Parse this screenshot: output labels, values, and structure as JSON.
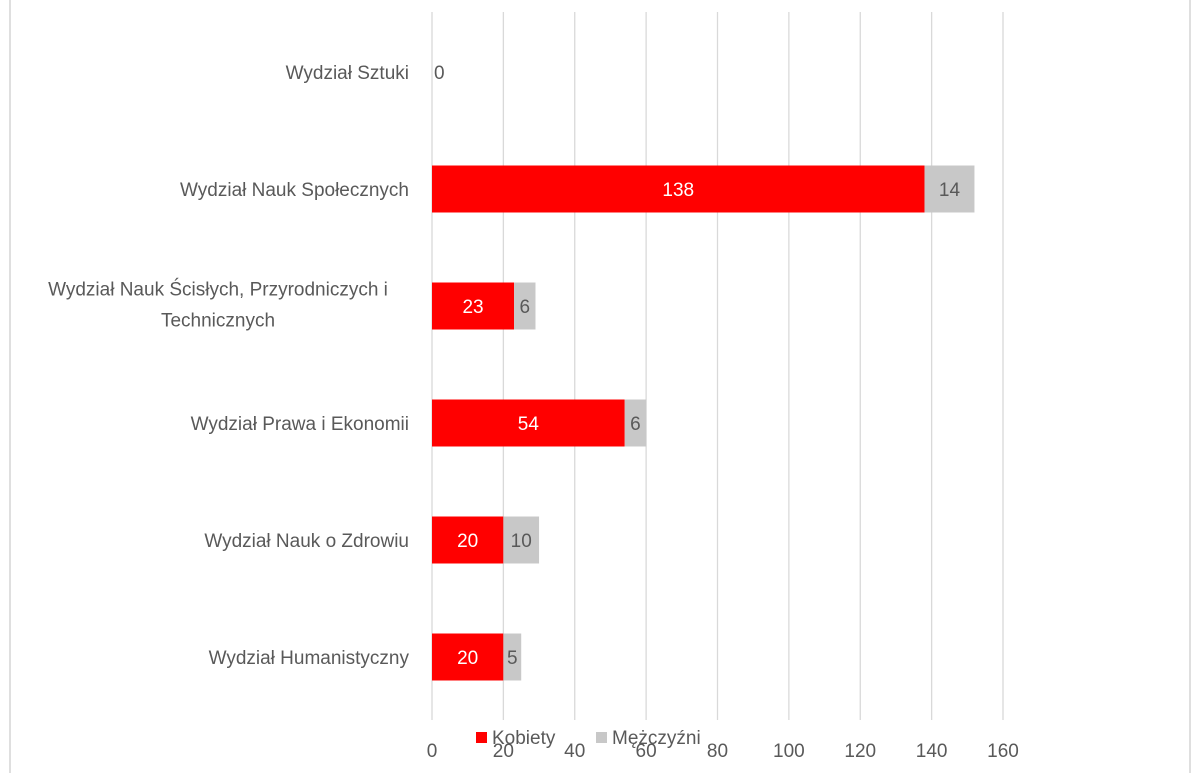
{
  "chart_data": {
    "type": "bar",
    "orientation": "horizontal",
    "stacked": true,
    "title": "",
    "xlabel": "",
    "ylabel": "",
    "xlim": [
      0,
      160
    ],
    "x_ticks": [
      0,
      20,
      40,
      60,
      80,
      100,
      120,
      140,
      160
    ],
    "grid": true,
    "legend_position": "bottom",
    "categories": [
      "Wydział Sztuki",
      "Wydział Nauk Społecznych",
      "Wydział Nauk Ścisłych, Przyrodniczych i Technicznych",
      "Wydział Prawa i Ekonomii",
      "Wydział Nauk o Zdrowiu",
      "Wydział Humanistyczny"
    ],
    "category_label_lines": [
      [
        "Wydział Sztuki"
      ],
      [
        "Wydział Nauk Społecznych"
      ],
      [
        "Wydział Nauk Ścisłych, Przyrodniczych i",
        "Technicznych"
      ],
      [
        "Wydział Prawa i Ekonomii"
      ],
      [
        "Wydział Nauk o Zdrowiu"
      ],
      [
        "Wydział Humanistyczny"
      ]
    ],
    "series": [
      {
        "name": "Kobiety",
        "color": "#ff0000",
        "label_color": "#ffffff",
        "values": [
          0,
          138,
          23,
          54,
          20,
          20
        ]
      },
      {
        "name": "Mężczyźni",
        "color": "#c8c8c8",
        "label_color": "#595959",
        "values": [
          null,
          14,
          6,
          6,
          10,
          5
        ]
      }
    ]
  },
  "colors": {
    "gridline": "#d9d9d9",
    "text": "#595959",
    "frame": "#bfbfbf"
  }
}
